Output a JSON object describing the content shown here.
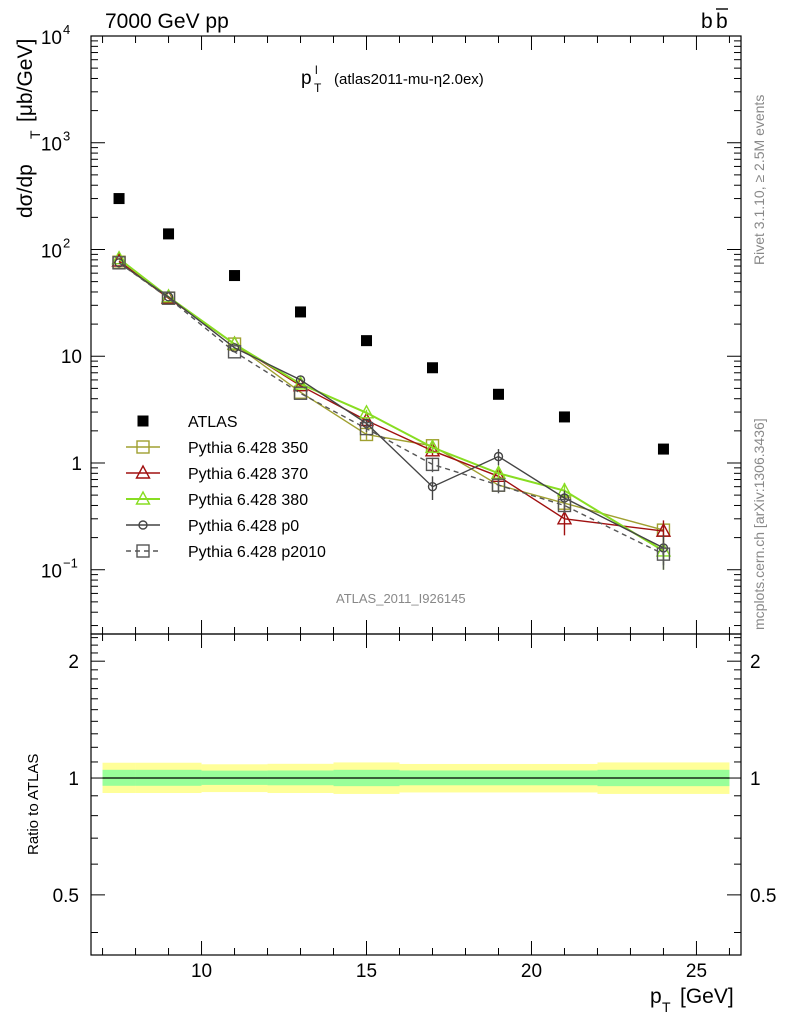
{
  "header": {
    "left": "7000 GeV pp",
    "right_base": "b",
    "right_bar": "b"
  },
  "side_text": {
    "rivet": "Rivet 3.1.10, ≥ 2.5M events",
    "mcplots": "mcplots.cern.ch [arXiv:1306.3436]"
  },
  "colors": {
    "atlas": "#000000",
    "p350": "#a0a030",
    "p370": "#a01010",
    "p380": "#88dd22",
    "p0": "#444444",
    "p2010": "#555555",
    "band_outer": "#ffff99",
    "band_inner": "#99ff99"
  },
  "chart_data": {
    "type": "scatter",
    "title_main": "p",
    "title_sup": "l",
    "title_sub": "T",
    "title_rest": "(atlas2011-mu-η2.0ex)",
    "watermark": "ATLAS_2011_I926145",
    "ylabel": "dσ/dp",
    "ylabel_sub": "T",
    "ylabel_unit": "[μb/GeV]",
    "xlabel": "p",
    "xlabel_sub": "T",
    "xlabel_unit": "[GeV]",
    "ratio_ylabel": "Ratio to ATLAS",
    "xlim": [
      6.65,
      26.35
    ],
    "ylim": [
      0.025,
      10000
    ],
    "yscale": "log",
    "ratio_ylim": [
      0.35,
      2.35
    ],
    "ratio_yscale": "log",
    "x_ticks": [
      10,
      15,
      20,
      25
    ],
    "x_tick_labels": [
      "10",
      "15",
      "20",
      "25"
    ],
    "y_ticks": [
      {
        "v": 0.1,
        "base": "10",
        "exp": "−1"
      },
      {
        "v": 1,
        "base": "1",
        "exp": ""
      },
      {
        "v": 10,
        "base": "10",
        "exp": ""
      },
      {
        "v": 100,
        "base": "10",
        "exp": "2"
      },
      {
        "v": 1000,
        "base": "10",
        "exp": "3"
      },
      {
        "v": 10000,
        "base": "10",
        "exp": "4"
      }
    ],
    "ratio_ticks": [
      {
        "v": 0.5,
        "label": "0.5"
      },
      {
        "v": 1,
        "label": "1"
      },
      {
        "v": 2,
        "label": "2"
      }
    ],
    "legend": [
      {
        "label": "ATLAS",
        "key": "atlas"
      },
      {
        "label": "Pythia 6.428 350",
        "key": "p350"
      },
      {
        "label": "Pythia 6.428 370",
        "key": "p370"
      },
      {
        "label": "Pythia 6.428 380",
        "key": "p380"
      },
      {
        "label": "Pythia 6.428 p0",
        "key": "p0"
      },
      {
        "label": "Pythia 6.428 p2010",
        "key": "p2010"
      }
    ],
    "x": [
      7.5,
      9,
      11,
      13,
      15,
      17,
      19,
      21,
      24
    ],
    "series": [
      {
        "key": "atlas",
        "name": "ATLAS",
        "values": [
          300,
          140,
          57,
          26,
          14,
          7.8,
          4.4,
          2.7,
          1.35
        ],
        "marker": "filled-square"
      },
      {
        "key": "p350",
        "name": "Pythia 6.428 350",
        "values": [
          76,
          35,
          13,
          4.6,
          1.85,
          1.45,
          0.62,
          0.42,
          0.235
        ],
        "errors": [
          0,
          0,
          0,
          0,
          0.2,
          0.12,
          0.08,
          0.06,
          0.03
        ],
        "marker": "open-square"
      },
      {
        "key": "p370",
        "name": "Pythia 6.428 370",
        "values": [
          78,
          35,
          13,
          5.3,
          2.5,
          1.3,
          0.75,
          0.3,
          0.23
        ],
        "errors": [
          0,
          0,
          0,
          0,
          0,
          0.12,
          0.1,
          0.09,
          0.06
        ],
        "marker": "open-triangle"
      },
      {
        "key": "p380",
        "name": "Pythia 6.428 380",
        "values": [
          82,
          36,
          13,
          5.5,
          2.95,
          1.4,
          0.8,
          0.55,
          0.15
        ],
        "errors": [
          0,
          0,
          0,
          0,
          0.2,
          0.15,
          0.12,
          0.1,
          0.05
        ],
        "marker": "open-triangle"
      },
      {
        "key": "p0",
        "name": "Pythia 6.428 p0",
        "values": [
          75,
          36,
          12,
          6,
          2.35,
          0.6,
          1.15,
          0.47,
          0.16
        ],
        "errors": [
          0,
          0,
          0,
          0,
          0.15,
          0.15,
          0.2,
          0.08,
          0.05
        ],
        "marker": "open-circle"
      },
      {
        "key": "p2010",
        "name": "Pythia 6.428 p2010",
        "values": [
          75,
          35,
          11,
          4.5,
          2.1,
          0.97,
          0.62,
          0.4,
          0.14
        ],
        "errors": [
          0,
          0,
          0,
          0,
          0.15,
          0.15,
          0.1,
          0.06,
          0.04
        ],
        "marker": "open-square",
        "dashed": true
      }
    ],
    "ratio_bands": [
      {
        "x0": 7,
        "x1": 8,
        "outer": [
          0.915,
          1.095
        ],
        "inner": [
          0.955,
          1.05
        ]
      },
      {
        "x0": 8,
        "x1": 10,
        "outer": [
          0.915,
          1.095
        ],
        "inner": [
          0.955,
          1.05
        ]
      },
      {
        "x0": 10,
        "x1": 12,
        "outer": [
          0.92,
          1.085
        ],
        "inner": [
          0.96,
          1.045
        ]
      },
      {
        "x0": 12,
        "x1": 14,
        "outer": [
          0.915,
          1.088
        ],
        "inner": [
          0.958,
          1.046
        ]
      },
      {
        "x0": 14,
        "x1": 16,
        "outer": [
          0.91,
          1.097
        ],
        "inner": [
          0.953,
          1.05
        ]
      },
      {
        "x0": 16,
        "x1": 18,
        "outer": [
          0.918,
          1.087
        ],
        "inner": [
          0.958,
          1.046
        ]
      },
      {
        "x0": 18,
        "x1": 20,
        "outer": [
          0.918,
          1.087
        ],
        "inner": [
          0.958,
          1.046
        ]
      },
      {
        "x0": 20,
        "x1": 22,
        "outer": [
          0.918,
          1.087
        ],
        "inner": [
          0.958,
          1.046
        ]
      },
      {
        "x0": 22,
        "x1": 26,
        "outer": [
          0.91,
          1.097
        ],
        "inner": [
          0.953,
          1.05
        ]
      }
    ]
  }
}
